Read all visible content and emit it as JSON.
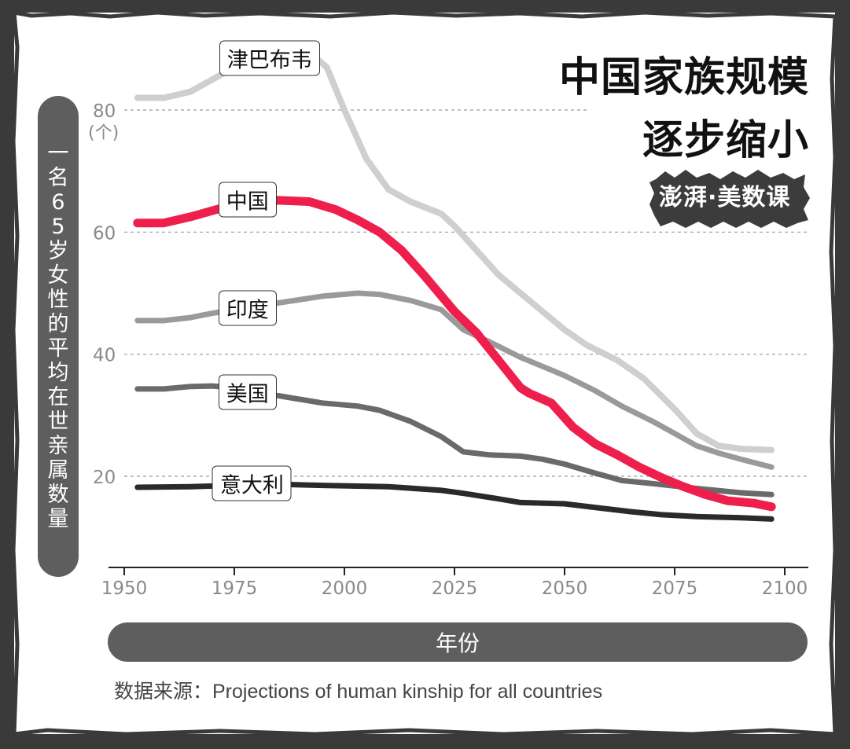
{
  "title": {
    "line1": "中国家族规模",
    "line2": "逐步缩小"
  },
  "logo_text": "澎湃·美数课",
  "ylabel": "一名65岁女性的平均在世亲属数量",
  "xlabel": "年份",
  "y_unit": "(个)",
  "source": "数据来源：Projections of human kinship for all countries",
  "colors": {
    "china": "#ee1f4d",
    "zimbabwe": "#cfcfcf",
    "india": "#9a9a9a",
    "usa": "#6a6a6a",
    "italy": "#2a2a2a",
    "frame": "#3a3a3a",
    "pill": "#5e5e5e"
  },
  "chart_data": {
    "type": "line",
    "x_ticks": [
      1950,
      1975,
      2000,
      2025,
      2050,
      2075,
      2100
    ],
    "y_ticks": [
      20,
      40,
      60,
      80
    ],
    "xlim": [
      1950,
      2100
    ],
    "ylim": [
      6,
      100
    ],
    "grid": "horizontal dashed",
    "series": [
      {
        "key": "zimbabwe",
        "name": "津巴布韦",
        "label_x": 1983,
        "label_y": 88.5,
        "points": [
          [
            1953,
            82
          ],
          [
            1959,
            82
          ],
          [
            1965,
            83
          ],
          [
            1970,
            85
          ],
          [
            1975,
            87
          ],
          [
            1980,
            89
          ],
          [
            1985,
            89.5
          ],
          [
            1992,
            89.5
          ],
          [
            1996,
            87
          ],
          [
            2000,
            80
          ],
          [
            2005,
            72
          ],
          [
            2010,
            67
          ],
          [
            2015,
            65
          ],
          [
            2022,
            63
          ],
          [
            2025,
            61
          ],
          [
            2030,
            57
          ],
          [
            2035,
            53
          ],
          [
            2040,
            50
          ],
          [
            2045,
            47
          ],
          [
            2050,
            44
          ],
          [
            2055,
            41.5
          ],
          [
            2062,
            39
          ],
          [
            2068,
            36
          ],
          [
            2075,
            31
          ],
          [
            2080,
            27
          ],
          [
            2085,
            25
          ],
          [
            2090,
            24.5
          ],
          [
            2097,
            24.3
          ]
        ]
      },
      {
        "key": "india",
        "name": "印度",
        "label_x": 1978,
        "label_y": 47.5,
        "points": [
          [
            1953,
            45.5
          ],
          [
            1959,
            45.5
          ],
          [
            1965,
            46
          ],
          [
            1970,
            46.7
          ],
          [
            1975,
            47.3
          ],
          [
            1980,
            47.8
          ],
          [
            1985,
            48.4
          ],
          [
            1995,
            49.5
          ],
          [
            2003,
            50
          ],
          [
            2008,
            49.8
          ],
          [
            2015,
            48.8
          ],
          [
            2022,
            47.3
          ],
          [
            2027,
            44
          ],
          [
            2033,
            42
          ],
          [
            2040,
            39.5
          ],
          [
            2045,
            38
          ],
          [
            2050,
            36.5
          ],
          [
            2057,
            34
          ],
          [
            2063,
            31.5
          ],
          [
            2070,
            29
          ],
          [
            2075,
            27
          ],
          [
            2080,
            25
          ],
          [
            2085,
            23.8
          ],
          [
            2090,
            22.8
          ],
          [
            2097,
            21.5
          ]
        ]
      },
      {
        "key": "usa",
        "name": "美国",
        "label_x": 1978,
        "label_y": 33.8,
        "points": [
          [
            1953,
            34.3
          ],
          [
            1959,
            34.3
          ],
          [
            1965,
            34.7
          ],
          [
            1970,
            34.8
          ],
          [
            1975,
            34.5
          ],
          [
            1980,
            33.5
          ],
          [
            1985,
            33.2
          ],
          [
            1995,
            32
          ],
          [
            2003,
            31.5
          ],
          [
            2008,
            30.8
          ],
          [
            2015,
            29
          ],
          [
            2022,
            26.5
          ],
          [
            2027,
            24
          ],
          [
            2033,
            23.5
          ],
          [
            2040,
            23.3
          ],
          [
            2045,
            22.8
          ],
          [
            2050,
            22
          ],
          [
            2057,
            20.5
          ],
          [
            2063,
            19.3
          ],
          [
            2070,
            18.8
          ],
          [
            2080,
            18
          ],
          [
            2090,
            17.3
          ],
          [
            2097,
            17
          ]
        ]
      },
      {
        "key": "italy",
        "name": "意大利",
        "label_x": 1979,
        "label_y": 18.8,
        "points": [
          [
            1953,
            18.2
          ],
          [
            1965,
            18.3
          ],
          [
            1975,
            18.5
          ],
          [
            1985,
            18.7
          ],
          [
            1995,
            18.5
          ],
          [
            2010,
            18.3
          ],
          [
            2022,
            17.7
          ],
          [
            2027,
            17.2
          ],
          [
            2035,
            16.3
          ],
          [
            2040,
            15.7
          ],
          [
            2050,
            15.5
          ],
          [
            2058,
            14.8
          ],
          [
            2065,
            14.2
          ],
          [
            2072,
            13.7
          ],
          [
            2080,
            13.4
          ],
          [
            2090,
            13.2
          ],
          [
            2097,
            13
          ]
        ]
      },
      {
        "key": "china",
        "name": "中国",
        "label_x": 1978,
        "label_y": 65.3,
        "points": [
          [
            1953,
            61.5
          ],
          [
            1959,
            61.5
          ],
          [
            1965,
            62.5
          ],
          [
            1970,
            63.5
          ],
          [
            1975,
            64.5
          ],
          [
            1980,
            65.1
          ],
          [
            1985,
            65.2
          ],
          [
            1992,
            65
          ],
          [
            1998,
            63.7
          ],
          [
            2003,
            62
          ],
          [
            2008,
            60
          ],
          [
            2013,
            57
          ],
          [
            2018,
            53
          ],
          [
            2025,
            47
          ],
          [
            2030,
            43.5
          ],
          [
            2035,
            39
          ],
          [
            2040,
            34.5
          ],
          [
            2042,
            33.6
          ],
          [
            2047,
            32
          ],
          [
            2052,
            28
          ],
          [
            2057,
            25.3
          ],
          [
            2062,
            23.5
          ],
          [
            2067,
            21.5
          ],
          [
            2072,
            19.8
          ],
          [
            2077,
            18.3
          ],
          [
            2082,
            17
          ],
          [
            2087,
            16
          ],
          [
            2093,
            15.6
          ],
          [
            2097,
            15
          ]
        ]
      }
    ]
  }
}
